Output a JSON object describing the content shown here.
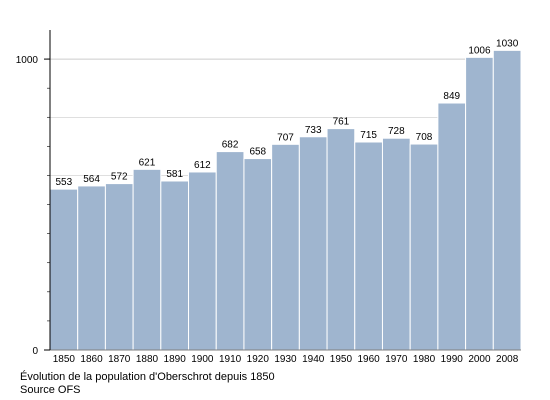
{
  "chart_data": {
    "type": "bar",
    "categories": [
      "1850",
      "1860",
      "1870",
      "1880",
      "1890",
      "1900",
      "1910",
      "1920",
      "1930",
      "1940",
      "1950",
      "1960",
      "1970",
      "1980",
      "1990",
      "2000",
      "2008"
    ],
    "values": [
      553,
      564,
      572,
      621,
      581,
      612,
      682,
      658,
      707,
      733,
      761,
      715,
      728,
      708,
      849,
      1006,
      1030
    ],
    "ylim": [
      0,
      1100
    ],
    "y_ticks": [
      0,
      1000
    ],
    "grid": true,
    "legend": "none",
    "xlabel": "",
    "ylabel": "",
    "title": "Évolution de la population d'Oberschrot depuis 1850",
    "subtitle": "Source OFS"
  },
  "colors": {
    "bar_fill": "#9fb5cf",
    "bar_edge": "#ffffff",
    "grid": "#cccccc",
    "axis": "#000000"
  }
}
